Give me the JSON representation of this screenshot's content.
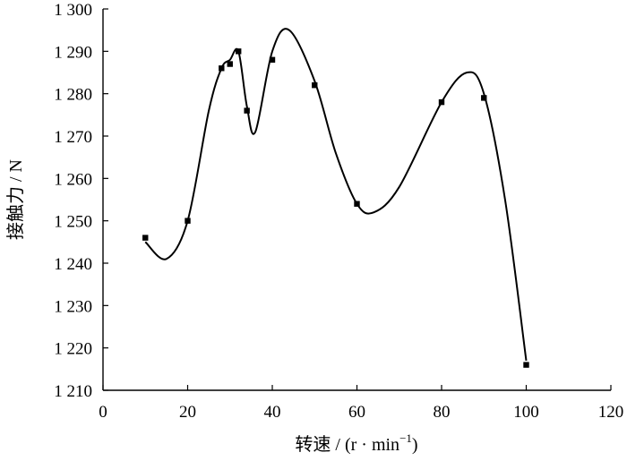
{
  "chart_data": {
    "type": "scatter",
    "title": "",
    "xlabel": "转速 / (r · min",
    "xlabel_sup": "−1",
    "xlabel_close": ")",
    "ylabel": "接触力 / N",
    "xlim": [
      0,
      120
    ],
    "ylim": [
      1210,
      1300
    ],
    "xticks": [
      0,
      20,
      40,
      60,
      80,
      100,
      120
    ],
    "xtick_labels": [
      "0",
      "20",
      "40",
      "60",
      "80",
      "100",
      "120"
    ],
    "yticks": [
      1210,
      1220,
      1230,
      1240,
      1250,
      1260,
      1270,
      1280,
      1290,
      1300
    ],
    "ytick_labels": [
      "1 210",
      "1 220",
      "1 230",
      "1 240",
      "1 250",
      "1 260",
      "1 270",
      "1 280",
      "1 290",
      "1 300"
    ],
    "grid": false,
    "legend": "none",
    "series": [
      {
        "x": [
          10,
          20,
          28,
          30,
          32,
          34,
          40,
          50,
          60,
          80,
          90,
          100
        ],
        "y": [
          1246,
          1250,
          1286,
          1287,
          1290,
          1276,
          1288,
          1282,
          1254,
          1278,
          1279,
          1216
        ],
        "marker": "square",
        "color": "#000000",
        "smooth_curve": true
      }
    ],
    "smooth_curve_path": {
      "x": [
        10,
        15,
        20,
        25,
        28,
        30,
        32,
        34,
        36,
        40,
        44,
        50,
        55,
        60,
        64,
        70,
        80,
        86,
        90,
        95,
        100
      ],
      "y": [
        1245,
        1241,
        1250,
        1276,
        1286,
        1288,
        1290,
        1277,
        1271,
        1290,
        1295,
        1283,
        1266,
        1254,
        1252,
        1258,
        1278,
        1285,
        1280,
        1255,
        1217
      ]
    }
  }
}
